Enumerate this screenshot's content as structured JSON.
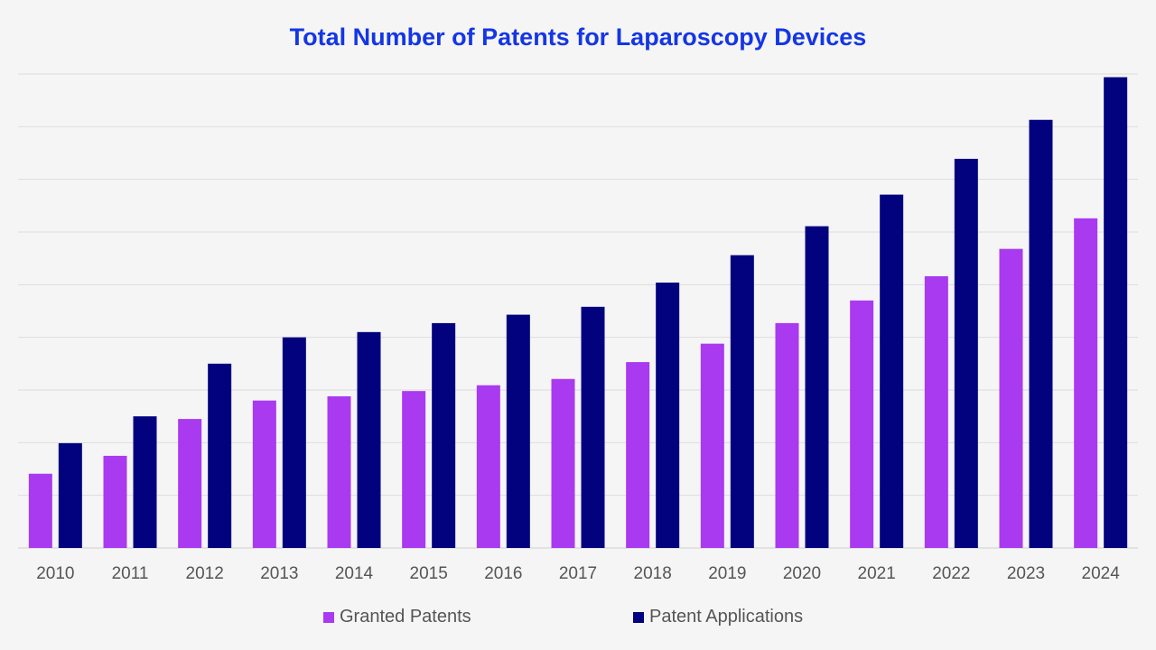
{
  "chart_data": {
    "type": "bar",
    "title": "Total Number of Patents for Laparoscopy Devices",
    "xlabel": "",
    "ylabel": "",
    "categories": [
      "2010",
      "2011",
      "2012",
      "2013",
      "2014",
      "2015",
      "2016",
      "2017",
      "2018",
      "2019",
      "2020",
      "2021",
      "2022",
      "2023",
      "2024"
    ],
    "series": [
      {
        "name": "Granted Patents",
        "color": "#a93af0",
        "values": [
          1.41,
          1.75,
          2.45,
          2.8,
          2.88,
          2.98,
          3.09,
          3.21,
          3.53,
          3.88,
          4.27,
          4.7,
          5.16,
          5.68,
          6.26
        ]
      },
      {
        "name": "Patent Applications",
        "color": "#02027e",
        "values": [
          1.99,
          2.5,
          3.5,
          4.0,
          4.1,
          4.27,
          4.43,
          4.58,
          5.04,
          5.56,
          6.11,
          6.71,
          7.39,
          8.13,
          8.94
        ]
      }
    ],
    "ylim": [
      0,
      9
    ],
    "y_tick_labels_shown": false,
    "grid": true,
    "legend": "bottom"
  }
}
